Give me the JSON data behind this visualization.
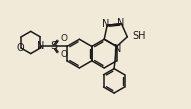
{
  "bg": "#f2ead8",
  "lc": "#1a1a1a",
  "lw": 1.1,
  "fs": 6.5,
  "xlim": [
    0,
    10.5
  ],
  "ylim": [
    0,
    6.0
  ],
  "figsize": [
    1.91,
    1.09
  ],
  "dpi": 100
}
